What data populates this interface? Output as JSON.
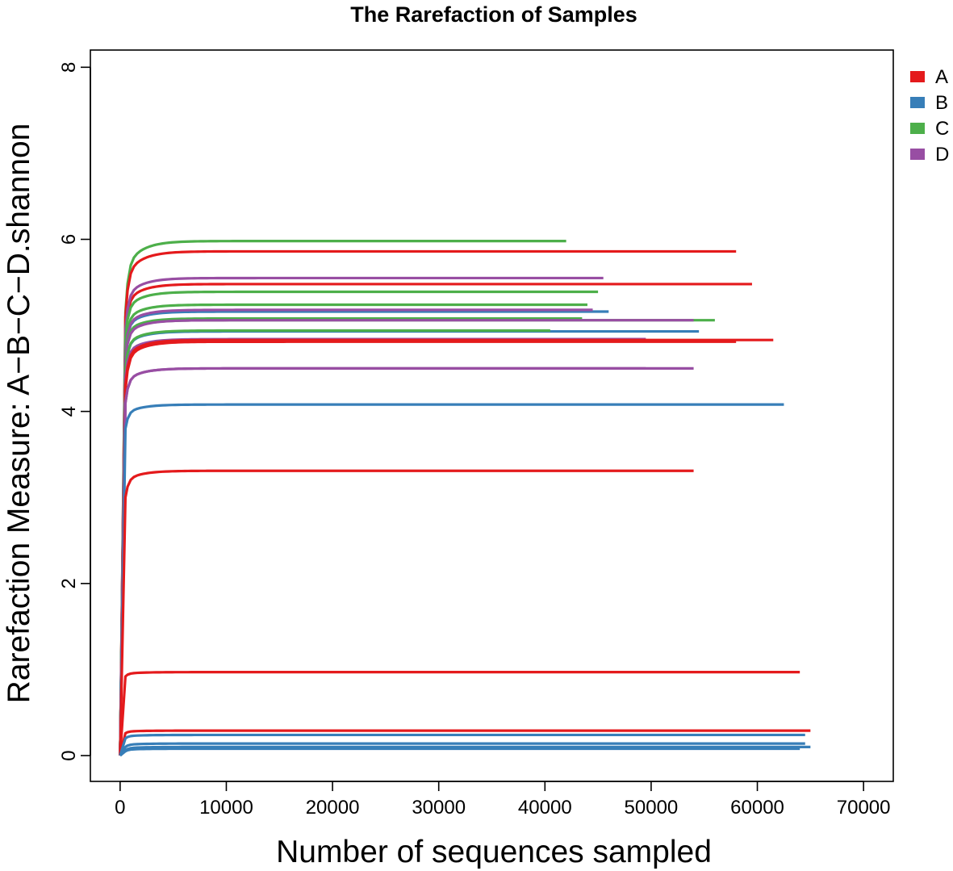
{
  "chart_data": {
    "type": "line",
    "title": "The Rarefaction of Samples",
    "xlabel": "Number of sequences sampled",
    "ylabel": "Rarefaction Measure: A−B−C−D.shannon",
    "xlim": [
      -2800,
      72800
    ],
    "ylim": [
      -0.3,
      8.2
    ],
    "xticks": [
      0,
      10000,
      20000,
      30000,
      40000,
      50000,
      60000,
      70000
    ],
    "yticks": [
      0,
      2,
      4,
      6,
      8
    ],
    "legend": {
      "position": "right",
      "entries": [
        {
          "label": "A",
          "color": "#e41a1c"
        },
        {
          "label": "B",
          "color": "#377eb8"
        },
        {
          "label": "C",
          "color": "#4daf4a"
        },
        {
          "label": "D",
          "color": "#984ea3"
        }
      ]
    },
    "series": [
      {
        "group": "C",
        "color": "#4daf4a",
        "plateau": 5.98,
        "max_x": 42000,
        "start": 5.15
      },
      {
        "group": "A",
        "color": "#e41a1c",
        "plateau": 5.86,
        "max_x": 58000,
        "start": 5.1
      },
      {
        "group": "A",
        "color": "#e41a1c",
        "plateau": 5.48,
        "max_x": 59500,
        "start": 4.9
      },
      {
        "group": "D",
        "color": "#984ea3",
        "plateau": 5.55,
        "max_x": 45500,
        "start": 4.95
      },
      {
        "group": "C",
        "color": "#4daf4a",
        "plateau": 5.39,
        "max_x": 45000,
        "start": 4.85
      },
      {
        "group": "C",
        "color": "#4daf4a",
        "plateau": 5.24,
        "max_x": 44000,
        "start": 4.75
      },
      {
        "group": "B",
        "color": "#377eb8",
        "plateau": 5.16,
        "max_x": 46000,
        "start": 4.7
      },
      {
        "group": "D",
        "color": "#984ea3",
        "plateau": 5.18,
        "max_x": 44500,
        "start": 4.7
      },
      {
        "group": "C",
        "color": "#4daf4a",
        "plateau": 5.08,
        "max_x": 43500,
        "start": 4.65
      },
      {
        "group": "C",
        "color": "#4daf4a",
        "plateau": 5.06,
        "max_x": 56000,
        "start": 4.65
      },
      {
        "group": "D",
        "color": "#984ea3",
        "plateau": 5.06,
        "max_x": 54000,
        "start": 4.6
      },
      {
        "group": "B",
        "color": "#377eb8",
        "plateau": 4.93,
        "max_x": 54500,
        "start": 4.5
      },
      {
        "group": "C",
        "color": "#4daf4a",
        "plateau": 4.94,
        "max_x": 40500,
        "start": 4.5
      },
      {
        "group": "D",
        "color": "#984ea3",
        "plateau": 4.84,
        "max_x": 49500,
        "start": 4.4
      },
      {
        "group": "A",
        "color": "#e41a1c",
        "plateau": 4.83,
        "max_x": 61500,
        "start": 4.3
      },
      {
        "group": "A",
        "color": "#e41a1c",
        "plateau": 4.81,
        "max_x": 58000,
        "start": 4.25
      },
      {
        "group": "D",
        "color": "#984ea3",
        "plateau": 4.5,
        "max_x": 54000,
        "start": 4.1
      },
      {
        "group": "D",
        "color": "#984ea3",
        "plateau": 4.5,
        "max_x": 49500,
        "start": 4.1
      },
      {
        "group": "B",
        "color": "#377eb8",
        "plateau": 4.08,
        "max_x": 62500,
        "start": 3.8
      },
      {
        "group": "A",
        "color": "#e41a1c",
        "plateau": 3.31,
        "max_x": 54000,
        "start": 3.0
      },
      {
        "group": "A",
        "color": "#e41a1c",
        "plateau": 0.97,
        "max_x": 64000,
        "start": 0.92
      },
      {
        "group": "A",
        "color": "#e41a1c",
        "plateau": 0.29,
        "max_x": 65000,
        "start": 0.26
      },
      {
        "group": "B",
        "color": "#377eb8",
        "plateau": 0.24,
        "max_x": 64500,
        "start": 0.2
      },
      {
        "group": "B",
        "color": "#377eb8",
        "plateau": 0.14,
        "max_x": 64500,
        "start": 0.1
      },
      {
        "group": "B",
        "color": "#377eb8",
        "plateau": 0.1,
        "max_x": 65000,
        "start": 0.06
      },
      {
        "group": "B",
        "color": "#377eb8",
        "plateau": 0.08,
        "max_x": 64000,
        "start": 0.05
      }
    ]
  }
}
